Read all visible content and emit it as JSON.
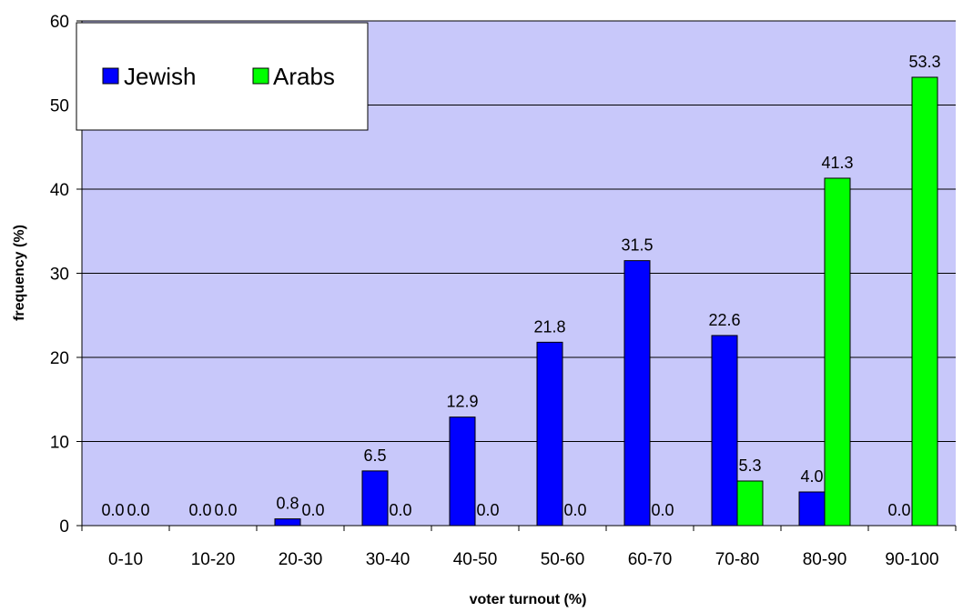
{
  "chart_data": {
    "type": "bar",
    "title": "",
    "xlabel": "voter turnout (%)",
    "ylabel": "frequency (%)",
    "ylim": [
      0,
      60
    ],
    "yticks": [
      0,
      10,
      20,
      30,
      40,
      50,
      60
    ],
    "grid": true,
    "legend_position": "top-left",
    "categories": [
      "0-10",
      "10-20",
      "20-30",
      "30-40",
      "40-50",
      "50-60",
      "60-70",
      "70-80",
      "80-90",
      "90-100"
    ],
    "series": [
      {
        "name": "Jewish",
        "color": "#0000ff",
        "values": [
          0.0,
          0.0,
          0.8,
          6.5,
          12.9,
          21.8,
          31.5,
          22.6,
          4.0,
          0.0
        ],
        "labels": [
          "0.0",
          "0.0",
          "0.8",
          "6.5",
          "12.9",
          "21.8",
          "31.5",
          "22.6",
          "4.0",
          "0.0"
        ]
      },
      {
        "name": "Arabs",
        "color": "#00ff00",
        "values": [
          0.0,
          0.0,
          0.0,
          0.0,
          0.0,
          0.0,
          0.0,
          5.3,
          41.3,
          53.3
        ],
        "labels": [
          "0.0",
          "0.0",
          "0.0",
          "0.0",
          "0.0",
          "0.0",
          "0.0",
          "5.3",
          "41.3",
          "53.3"
        ]
      }
    ],
    "plot_background": "#c8c8fa",
    "bar_outline": "#000000"
  }
}
